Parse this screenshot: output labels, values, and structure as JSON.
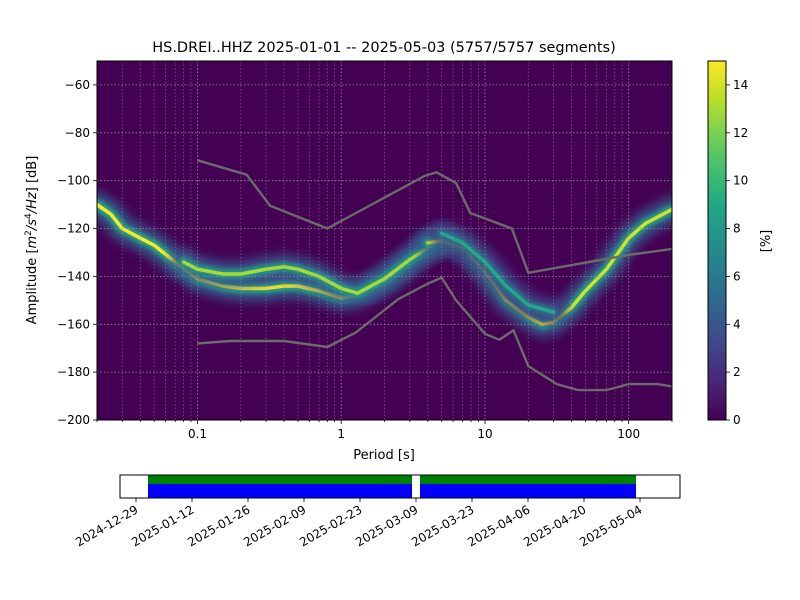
{
  "chart_data": [
    {
      "type": "heatmap",
      "title": "HS.DREI..HHZ   2025-01-01 -- 2025-05-03  (5757/5757 segments)",
      "xlabel": "Period [s]",
      "ylabel_prefix": "Amplitude [",
      "ylabel_suffix": "] [dB]",
      "x_scale": "log",
      "xlim": [
        0.02,
        200
      ],
      "ylim": [
        -200,
        -50
      ],
      "x_ticks": [
        {
          "value": 0.1,
          "label": "0.1"
        },
        {
          "value": 1,
          "label": "1"
        },
        {
          "value": 10,
          "label": "10"
        },
        {
          "value": 100,
          "label": "100"
        }
      ],
      "y_ticks": [
        {
          "value": -60,
          "label": "−60"
        },
        {
          "value": -80,
          "label": "−80"
        },
        {
          "value": -100,
          "label": "−100"
        },
        {
          "value": -120,
          "label": "−120"
        },
        {
          "value": -140,
          "label": "−140"
        },
        {
          "value": -160,
          "label": "−160"
        },
        {
          "value": -180,
          "label": "−180"
        },
        {
          "value": -200,
          "label": "−200"
        }
      ],
      "grid": true,
      "colormap": "viridis",
      "colorbar": {
        "label": "[%]",
        "range": [
          0,
          15
        ],
        "ticks": [
          {
            "value": 0,
            "label": "0"
          },
          {
            "value": 2,
            "label": "2"
          },
          {
            "value": 4,
            "label": "4"
          },
          {
            "value": 6,
            "label": "6"
          },
          {
            "value": 8,
            "label": "8"
          },
          {
            "value": 10,
            "label": "10"
          },
          {
            "value": 12,
            "label": "12"
          },
          {
            "value": 14,
            "label": "14"
          }
        ]
      },
      "density_bands": [
        {
          "name": "lower",
          "peak_percent": 15,
          "points": [
            [
              0.02,
              -110
            ],
            [
              0.025,
              -114
            ],
            [
              0.03,
              -120
            ],
            [
              0.04,
              -124
            ],
            [
              0.05,
              -127
            ],
            [
              0.07,
              -134
            ],
            [
              0.1,
              -141
            ],
            [
              0.15,
              -144
            ],
            [
              0.2,
              -145
            ],
            [
              0.3,
              -145
            ],
            [
              0.4,
              -144
            ],
            [
              0.5,
              -144
            ],
            [
              0.7,
              -146
            ],
            [
              1.0,
              -149
            ],
            [
              1.3,
              -148
            ],
            [
              2.0,
              -142
            ],
            [
              3.0,
              -134
            ],
            [
              4.0,
              -128
            ],
            [
              5.0,
              -125
            ]
          ]
        },
        {
          "name": "upper",
          "peak_percent": 13,
          "points": [
            [
              0.08,
              -134
            ],
            [
              0.1,
              -137
            ],
            [
              0.15,
              -139
            ],
            [
              0.2,
              -139
            ],
            [
              0.3,
              -137
            ],
            [
              0.4,
              -136
            ],
            [
              0.5,
              -137
            ],
            [
              0.7,
              -140
            ],
            [
              1.0,
              -145
            ],
            [
              1.3,
              -147
            ],
            [
              2.0,
              -141
            ],
            [
              3.0,
              -133
            ],
            [
              4.0,
              -128
            ],
            [
              5.0,
              -124
            ]
          ]
        },
        {
          "name": "long-period",
          "peak_percent": 14,
          "points": [
            [
              4.0,
              -126
            ],
            [
              5.0,
              -125
            ],
            [
              7.0,
              -128
            ],
            [
              10.0,
              -138
            ],
            [
              14.0,
              -150
            ],
            [
              20.0,
              -157
            ],
            [
              25.0,
              -160
            ],
            [
              30.0,
              -159
            ],
            [
              40.0,
              -153
            ],
            [
              50.0,
              -146
            ],
            [
              70.0,
              -137
            ],
            [
              100.0,
              -124
            ],
            [
              130.0,
              -118
            ],
            [
              200.0,
              -112
            ]
          ]
        },
        {
          "name": "diffuse",
          "peak_percent": 9,
          "points": [
            [
              5.0,
              -122
            ],
            [
              7.0,
              -126
            ],
            [
              10.0,
              -134
            ],
            [
              14.0,
              -144
            ],
            [
              20.0,
              -152
            ],
            [
              30.0,
              -155
            ]
          ]
        }
      ],
      "reference_curves": [
        {
          "name": "upper",
          "points": [
            [
              0.1,
              -91.5
            ],
            [
              0.22,
              -97.5
            ],
            [
              0.32,
              -110.5
            ],
            [
              0.8,
              -120
            ],
            [
              3.8,
              -98
            ],
            [
              4.6,
              -96.5
            ],
            [
              6.3,
              -101
            ],
            [
              7.9,
              -113.5
            ],
            [
              15.4,
              -120
            ],
            [
              20,
              -138.5
            ],
            [
              100,
              -131
            ],
            [
              200,
              -128.5
            ]
          ]
        },
        {
          "name": "lower",
          "points": [
            [
              0.1,
              -168
            ],
            [
              0.17,
              -167
            ],
            [
              0.4,
              -167
            ],
            [
              0.8,
              -169.5
            ],
            [
              1.26,
              -163.5
            ],
            [
              2.5,
              -149.5
            ],
            [
              4.0,
              -143
            ],
            [
              5.0,
              -140.5
            ],
            [
              6.3,
              -150
            ],
            [
              10.0,
              -164
            ],
            [
              12.6,
              -166.5
            ],
            [
              15.8,
              -162.5
            ],
            [
              20.0,
              -177.5
            ],
            [
              31.6,
              -185
            ],
            [
              44.7,
              -187.5
            ],
            [
              70.0,
              -187.5
            ],
            [
              100.0,
              -185
            ],
            [
              158.0,
              -185
            ],
            [
              200.0,
              -186
            ]
          ]
        }
      ]
    },
    {
      "type": "timeline",
      "xlim": [
        "2024-12-25",
        "2025-05-14"
      ],
      "tick_labels": [
        "2024-12-29",
        "2025-01-12",
        "2025-01-26",
        "2025-02-09",
        "2025-02-23",
        "2025-03-09",
        "2025-03-23",
        "2025-04-06",
        "2025-04-20",
        "2025-05-04"
      ],
      "coverage": [
        {
          "start": "2025-01-01",
          "end": "2025-03-08",
          "fill_color": "#0000ff",
          "used_color": "#008000"
        },
        {
          "start": "2025-03-10",
          "end": "2025-05-03",
          "fill_color": "#0000ff",
          "used_color": "#008000"
        }
      ]
    }
  ]
}
